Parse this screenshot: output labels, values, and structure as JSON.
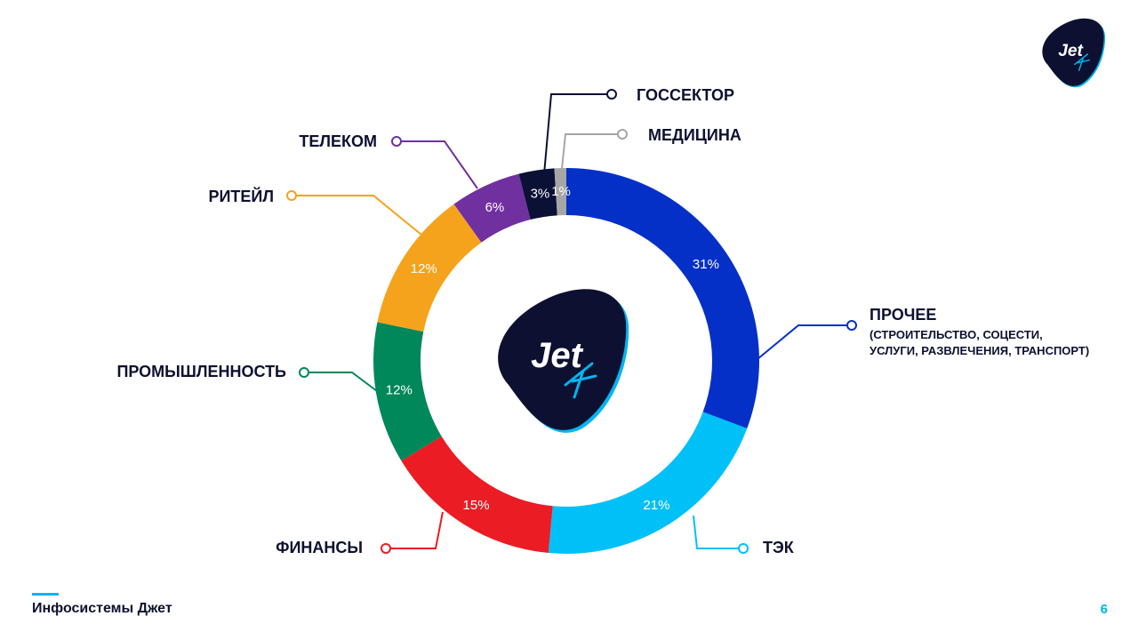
{
  "chart_data": {
    "type": "pie",
    "categories": [
      "ПРОЧЕЕ",
      "ТЭК",
      "ФИНАНСЫ",
      "ПРОМЫШЛЕННОСТЬ",
      "РИТЕЙЛ",
      "ТЕЛЕКОМ",
      "ГОССЕКТОР",
      "МЕДИЦИНА"
    ],
    "values": [
      31,
      21,
      15,
      12,
      12,
      6,
      3,
      1
    ],
    "value_labels": [
      "31%",
      "21%",
      "15%",
      "12%",
      "12%",
      "6%",
      "3%",
      "1%"
    ],
    "sublabels": [
      "(СТРОИТЕЛЬСТВО, СОЦЕСТИ,",
      "УСЛУГИ, РАЗВЛЕЧЕНИЯ, ТРАНСПОРТ)"
    ],
    "colors": [
      "#0530c8",
      "#00c0f8",
      "#ec1c24",
      "#00875a",
      "#f5a31c",
      "#7030a0",
      "#0b1035",
      "#a6a6a6"
    ],
    "donut": true,
    "start_angle": 0,
    "direction": "clockwise"
  },
  "logo": {
    "text": "Jet",
    "icon": "jet-logo-icon",
    "bg_color": "#0d1030",
    "accent_color": "#00b5f0"
  },
  "footer": {
    "company": "Инфосистемы Джет",
    "page_number": "6"
  }
}
